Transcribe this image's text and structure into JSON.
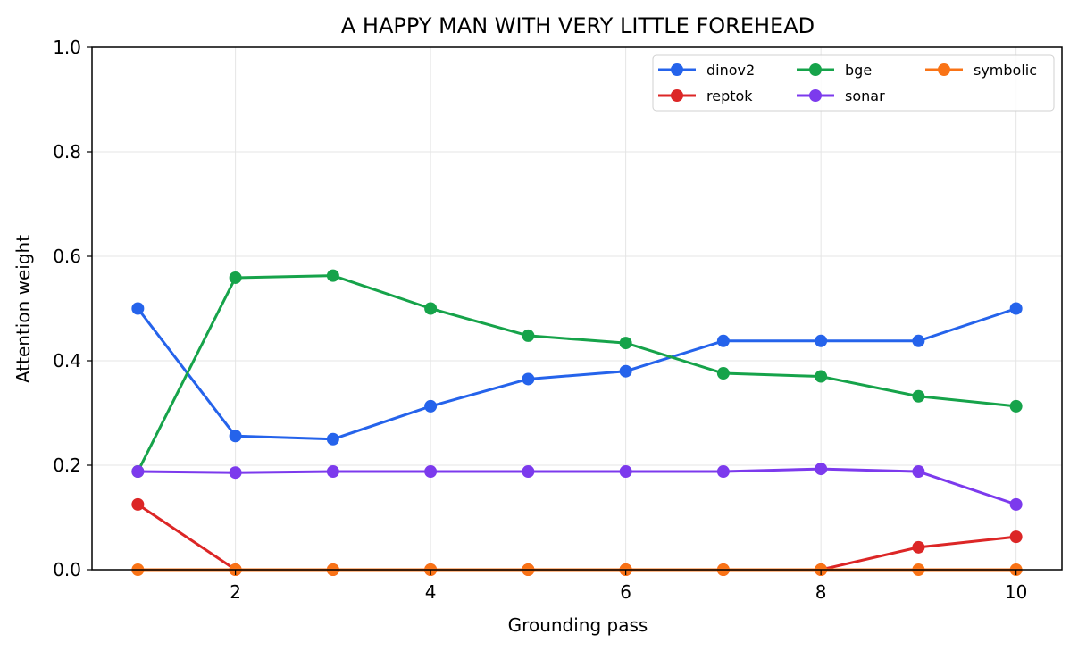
{
  "chart_data": {
    "type": "line",
    "title": "A HAPPY MAN WITH VERY LITTLE FOREHEAD",
    "xlabel": "Grounding pass",
    "ylabel": "Attention weight",
    "x": [
      1,
      2,
      3,
      4,
      5,
      6,
      7,
      8,
      9,
      10
    ],
    "xlim": [
      0.53,
      10.47
    ],
    "ylim": [
      0,
      1
    ],
    "xticks": [
      2,
      4,
      6,
      8,
      10
    ],
    "xtick_labels": [
      "2",
      "4",
      "6",
      "8",
      "10"
    ],
    "yticks": [
      0,
      0.2,
      0.4,
      0.6,
      0.8,
      1.0
    ],
    "ytick_labels": [
      "0.0",
      "0.2",
      "0.4",
      "0.6",
      "0.8",
      "1.0"
    ],
    "grid": true,
    "legend_position": "top-right",
    "legend_columns": 3,
    "series": [
      {
        "name": "dinov2",
        "color": "#2563eb",
        "values": [
          0.5,
          0.256,
          0.25,
          0.313,
          0.365,
          0.38,
          0.438,
          0.438,
          0.438,
          0.5
        ]
      },
      {
        "name": "reptok",
        "color": "#dc2626",
        "values": [
          0.125,
          0,
          0,
          0,
          0,
          0,
          0,
          0,
          0.043,
          0.063
        ]
      },
      {
        "name": "bge",
        "color": "#16a34a",
        "values": [
          0.188,
          0.559,
          0.563,
          0.5,
          0.448,
          0.434,
          0.376,
          0.37,
          0.332,
          0.313
        ]
      },
      {
        "name": "sonar",
        "color": "#7c3aed",
        "values": [
          0.188,
          0.186,
          0.188,
          0.188,
          0.188,
          0.188,
          0.188,
          0.193,
          0.188,
          0.125
        ]
      },
      {
        "name": "symbolic",
        "color": "#f97316",
        "values": [
          0,
          0,
          0,
          0,
          0,
          0,
          0,
          0,
          0,
          0
        ]
      }
    ]
  }
}
